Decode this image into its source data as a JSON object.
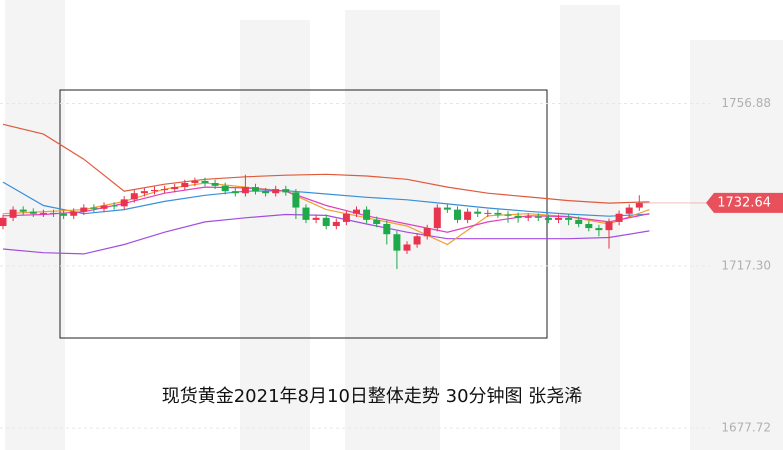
{
  "chart_data": {
    "type": "candlestick",
    "caption": "现货黄金2021年8月10日整体走势  30分钟图 张尧浠",
    "ylim": [
      1672.4,
      1782.1
    ],
    "yticks": [
      1756.88,
      {
        "value": 1717.3,
        "label": "1717.30"
      },
      1677.72
    ],
    "grid": true,
    "up_color": "#e8344e",
    "down_color": "#1fa94a",
    "last_price": 1732.64,
    "last_price_color": "#e8505b",
    "ohlc": [
      [
        1727.0,
        1729.8,
        1726.2,
        1729.0
      ],
      [
        1729.0,
        1731.8,
        1728.2,
        1731.0
      ],
      [
        1731.0,
        1731.8,
        1729.7,
        1730.5
      ],
      [
        1730.5,
        1731.3,
        1729.2,
        1730.0
      ],
      [
        1730.0,
        1731.0,
        1729.2,
        1730.2
      ],
      [
        1730.2,
        1731.0,
        1729.2,
        1730.0
      ],
      [
        1730.0,
        1730.8,
        1728.7,
        1729.5
      ],
      [
        1729.5,
        1731.3,
        1728.7,
        1730.5
      ],
      [
        1730.5,
        1732.3,
        1729.7,
        1731.5
      ],
      [
        1731.5,
        1732.3,
        1730.4,
        1731.2
      ],
      [
        1731.2,
        1732.8,
        1730.4,
        1732.0
      ],
      [
        1732.0,
        1732.8,
        1731.0,
        1731.8
      ],
      [
        1731.8,
        1734.3,
        1731.0,
        1733.5
      ],
      [
        1733.5,
        1735.8,
        1732.7,
        1735.0
      ],
      [
        1735.0,
        1736.3,
        1734.2,
        1735.5
      ],
      [
        1735.5,
        1736.6,
        1734.7,
        1735.8
      ],
      [
        1735.8,
        1736.8,
        1735.0,
        1736.0
      ],
      [
        1736.0,
        1737.3,
        1735.2,
        1736.5
      ],
      [
        1736.5,
        1738.3,
        1735.7,
        1737.5
      ],
      [
        1737.5,
        1738.8,
        1736.7,
        1738.0
      ],
      [
        1738.0,
        1738.8,
        1736.7,
        1737.5
      ],
      [
        1737.5,
        1738.3,
        1736.0,
        1736.8
      ],
      [
        1736.8,
        1737.6,
        1734.7,
        1735.5
      ],
      [
        1735.5,
        1736.3,
        1734.2,
        1735.0
      ],
      [
        1735.0,
        1739.5,
        1734.2,
        1736.5
      ],
      [
        1736.5,
        1737.3,
        1734.7,
        1735.5
      ],
      [
        1735.5,
        1736.3,
        1734.2,
        1735.0
      ],
      [
        1735.0,
        1736.8,
        1734.2,
        1736.0
      ],
      [
        1736.0,
        1736.8,
        1734.4,
        1735.2
      ],
      [
        1735.2,
        1736.0,
        1728.7,
        1731.5
      ],
      [
        1731.5,
        1732.3,
        1727.7,
        1728.5
      ],
      [
        1728.5,
        1729.8,
        1727.7,
        1729.0
      ],
      [
        1729.0,
        1729.8,
        1726.2,
        1727.0
      ],
      [
        1727.0,
        1728.8,
        1726.2,
        1728.0
      ],
      [
        1728.0,
        1730.8,
        1727.2,
        1730.0
      ],
      [
        1730.0,
        1731.8,
        1729.2,
        1731.0
      ],
      [
        1731.0,
        1731.8,
        1727.7,
        1728.5
      ],
      [
        1728.5,
        1729.3,
        1726.7,
        1727.5
      ],
      [
        1727.5,
        1728.3,
        1722.5,
        1725.0
      ],
      [
        1725.0,
        1725.8,
        1716.5,
        1721.0
      ],
      [
        1721.0,
        1723.3,
        1720.2,
        1722.5
      ],
      [
        1722.5,
        1725.3,
        1721.7,
        1724.5
      ],
      [
        1724.5,
        1727.3,
        1723.7,
        1726.5
      ],
      [
        1726.5,
        1732.3,
        1725.7,
        1731.5
      ],
      [
        1731.5,
        1732.3,
        1730.2,
        1731.0
      ],
      [
        1731.0,
        1731.8,
        1727.7,
        1728.5
      ],
      [
        1728.5,
        1731.3,
        1727.7,
        1730.5
      ],
      [
        1730.5,
        1731.3,
        1729.2,
        1730.0
      ],
      [
        1730.0,
        1731.0,
        1729.2,
        1730.2
      ],
      [
        1730.2,
        1731.0,
        1729.0,
        1729.8
      ],
      [
        1729.8,
        1730.6,
        1727.8,
        1729.5
      ],
      [
        1729.5,
        1730.3,
        1727.8,
        1729.0
      ],
      [
        1729.0,
        1730.1,
        1728.2,
        1729.3
      ],
      [
        1729.3,
        1730.1,
        1728.2,
        1729.0
      ],
      [
        1729.0,
        1729.8,
        1727.7,
        1728.5
      ],
      [
        1728.5,
        1729.8,
        1727.7,
        1729.0
      ],
      [
        1729.0,
        1729.8,
        1727.2,
        1728.5
      ],
      [
        1728.5,
        1729.3,
        1726.7,
        1727.5
      ],
      [
        1727.5,
        1728.3,
        1725.7,
        1726.5
      ],
      [
        1726.5,
        1727.3,
        1724.5,
        1726.0
      ],
      [
        1726.0,
        1728.8,
        1721.5,
        1728.0
      ],
      [
        1728.0,
        1730.8,
        1727.2,
        1730.0
      ],
      [
        1730.0,
        1732.3,
        1729.2,
        1731.5
      ],
      [
        1731.5,
        1734.5,
        1730.7,
        1732.6
      ]
    ],
    "lines": [
      {
        "color": "#e05a3c",
        "x": [
          0,
          4,
          8,
          12,
          16,
          20,
          24,
          28,
          32,
          36,
          40,
          44,
          48,
          52,
          56,
          60,
          64
        ],
        "values": [
          1751.8,
          1749.4,
          1743.3,
          1735.5,
          1737.2,
          1738.4,
          1739.0,
          1739.4,
          1739.6,
          1739.2,
          1738.4,
          1736.5,
          1735.0,
          1734.1,
          1733.2,
          1732.6,
          1732.9
        ]
      },
      {
        "color": "#3a8fd8",
        "x": [
          0,
          4,
          8,
          12,
          16,
          20,
          24,
          28,
          32,
          36,
          40,
          44,
          48,
          52,
          56,
          60,
          64
        ],
        "values": [
          1737.7,
          1732.0,
          1730.0,
          1731.0,
          1733.0,
          1734.5,
          1735.5,
          1735.6,
          1734.8,
          1734.0,
          1733.4,
          1732.4,
          1731.4,
          1730.6,
          1729.9,
          1729.4,
          1729.9
        ]
      },
      {
        "color": "#a14ee0",
        "x": [
          0,
          4,
          8,
          12,
          16,
          20,
          24,
          28,
          32,
          36,
          40,
          44,
          48,
          52,
          56,
          60,
          64
        ],
        "values": [
          1721.4,
          1720.5,
          1720.2,
          1722.5,
          1725.5,
          1728.0,
          1729.0,
          1729.8,
          1729.6,
          1727.5,
          1725.5,
          1723.9,
          1723.9,
          1723.9,
          1723.9,
          1724.2,
          1725.8
        ]
      },
      {
        "color": "#f0a030",
        "x": [
          0,
          4,
          8,
          12,
          16,
          20,
          24,
          28,
          32,
          36,
          40,
          44,
          48,
          52,
          56,
          60,
          64
        ],
        "values": [
          1730.0,
          1730.5,
          1731.0,
          1733.0,
          1736.0,
          1737.5,
          1736.5,
          1735.5,
          1731.0,
          1729.0,
          1727.0,
          1722.5,
          1729.5,
          1730.0,
          1729.3,
          1727.5,
          1731.0
        ]
      },
      {
        "color": "#e040c0",
        "x": [
          0,
          4,
          8,
          12,
          16,
          20,
          24,
          28,
          32,
          36,
          40,
          44,
          48,
          52,
          56,
          60,
          64
        ],
        "values": [
          1729.5,
          1729.8,
          1730.5,
          1732.5,
          1735.0,
          1736.5,
          1736.3,
          1735.5,
          1732.0,
          1729.5,
          1727.5,
          1725.5,
          1728.0,
          1729.5,
          1729.3,
          1728.0,
          1730.0
        ]
      }
    ]
  }
}
